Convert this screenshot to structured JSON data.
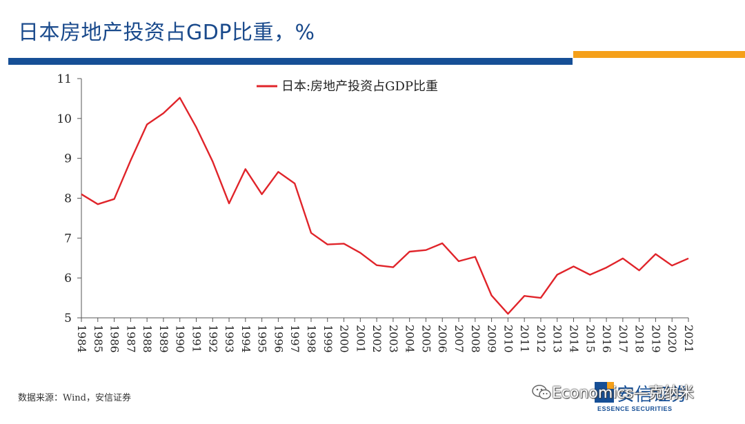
{
  "header": {
    "title": "日本房地产投资占GDP比重，%",
    "accent_blue": "#164f96",
    "accent_orange": "#f5a01a"
  },
  "chart_data": {
    "type": "line",
    "x": [
      "1984",
      "1985",
      "1986",
      "1987",
      "1988",
      "1989",
      "1990",
      "1991",
      "1992",
      "1993",
      "1994",
      "1995",
      "1996",
      "1997",
      "1998",
      "1999",
      "2000",
      "2001",
      "2002",
      "2003",
      "2004",
      "2005",
      "2006",
      "2007",
      "2008",
      "2009",
      "2010",
      "2011",
      "2012",
      "2013",
      "2014",
      "2015",
      "2016",
      "2017",
      "2018",
      "2019",
      "2020",
      "2021"
    ],
    "series": [
      {
        "name": "日本:房地产投资占GDP比重",
        "color": "#e0242a",
        "values": [
          8.1,
          7.85,
          7.98,
          8.95,
          9.85,
          10.13,
          10.52,
          9.78,
          8.92,
          7.87,
          8.73,
          8.1,
          8.66,
          8.37,
          7.13,
          6.84,
          6.86,
          6.63,
          6.32,
          6.27,
          6.66,
          6.7,
          6.87,
          6.42,
          6.53,
          5.56,
          5.1,
          5.55,
          5.5,
          6.08,
          6.29,
          6.08,
          6.26,
          6.49,
          6.19,
          6.6,
          6.31,
          6.49
        ]
      }
    ],
    "ylim": [
      5,
      11
    ],
    "yticks": [
      "5",
      "6",
      "7",
      "8",
      "9",
      "10",
      "11"
    ],
    "grid": false,
    "legend_position": "top-center",
    "xlabel": "",
    "ylabel": ""
  },
  "footer": {
    "source": "数据来源：Wind，安信证券",
    "watermark": "Economics—克纳米",
    "logo_text": "安信证券",
    "logo_subtext": "ESSENCE SECURITIES"
  }
}
